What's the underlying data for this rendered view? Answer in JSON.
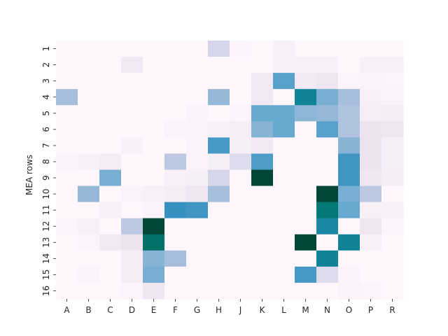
{
  "chart_data": {
    "type": "heatmap",
    "title": "",
    "xlabel": "",
    "ylabel": "MEA rows",
    "colorbar": false,
    "colormap": "PuBuGn",
    "value_range": [
      0,
      1
    ],
    "x_categories": [
      "A",
      "B",
      "C",
      "D",
      "E",
      "F",
      "G",
      "H",
      "J",
      "K",
      "L",
      "M",
      "N",
      "O",
      "P",
      "R"
    ],
    "y_categories": [
      "1",
      "2",
      "3",
      "4",
      "5",
      "6",
      "7",
      "8",
      "9",
      "10",
      "11",
      "12",
      "13",
      "14",
      "15",
      "16"
    ],
    "values": [
      [
        0.0,
        0.0,
        0.0,
        0.0,
        0.0,
        0.0,
        0.0,
        0.2,
        0.02,
        0.0,
        0.05,
        0.0,
        0.0,
        0.0,
        0.0,
        0.0
      ],
      [
        0.0,
        0.0,
        0.0,
        0.1,
        0.0,
        0.0,
        0.0,
        0.0,
        0.0,
        0.0,
        0.05,
        0.05,
        0.05,
        0.0,
        0.05,
        0.05
      ],
      [
        0.0,
        0.0,
        0.0,
        0.0,
        0.0,
        0.0,
        0.0,
        0.0,
        0.0,
        0.1,
        0.55,
        0.1,
        0.12,
        0.02,
        0.03,
        0.02
      ],
      [
        0.3,
        0.0,
        0.0,
        0.0,
        0.0,
        0.0,
        0.0,
        0.35,
        0.0,
        0.1,
        0.0,
        0.75,
        0.45,
        0.3,
        0.05,
        0.03
      ],
      [
        0.0,
        0.0,
        0.0,
        0.0,
        0.0,
        0.0,
        0.03,
        0.0,
        0.02,
        0.5,
        0.5,
        0.38,
        0.35,
        0.28,
        0.07,
        0.08
      ],
      [
        0.0,
        0.0,
        0.0,
        0.0,
        0.0,
        0.03,
        0.03,
        0.05,
        0.07,
        0.4,
        0.5,
        0.0,
        0.55,
        0.28,
        0.15,
        0.12
      ],
      [
        0.0,
        0.0,
        0.0,
        0.04,
        0.0,
        0.0,
        0.03,
        0.6,
        0.06,
        0.1,
        0.0,
        0.0,
        0.0,
        0.4,
        0.15,
        0.06
      ],
      [
        0.03,
        0.05,
        0.08,
        0.0,
        0.0,
        0.25,
        0.03,
        0.06,
        0.18,
        0.58,
        0.0,
        0.0,
        0.0,
        0.62,
        0.15,
        0.06
      ],
      [
        0.0,
        0.0,
        0.45,
        0.0,
        0.0,
        0.05,
        0.06,
        0.2,
        0.0,
        1.0,
        0.0,
        0.0,
        0.0,
        0.62,
        0.12,
        0.08
      ],
      [
        0.0,
        0.35,
        0.0,
        0.03,
        0.05,
        0.08,
        0.12,
        0.3,
        0.0,
        0.0,
        0.0,
        0.0,
        1.0,
        0.45,
        0.25,
        0.0
      ],
      [
        0.0,
        0.0,
        0.05,
        0.0,
        0.03,
        0.65,
        0.62,
        0.0,
        0.0,
        0.0,
        0.0,
        0.0,
        0.82,
        0.5,
        0.05,
        0.05
      ],
      [
        0.02,
        0.05,
        0.0,
        0.25,
        1.0,
        0.0,
        0.0,
        0.0,
        0.0,
        0.0,
        0.0,
        0.0,
        0.72,
        0.0,
        0.12,
        0.02
      ],
      [
        0.0,
        0.02,
        0.1,
        0.15,
        0.85,
        0.0,
        0.0,
        0.0,
        0.0,
        0.0,
        0.0,
        1.0,
        0.0,
        0.75,
        0.05,
        0.0
      ],
      [
        0.0,
        0.0,
        0.0,
        0.08,
        0.4,
        0.3,
        0.0,
        0.0,
        0.0,
        0.0,
        0.0,
        0.0,
        0.75,
        0.0,
        0.0,
        0.0
      ],
      [
        0.0,
        0.03,
        0.0,
        0.08,
        0.45,
        0.0,
        0.0,
        0.0,
        0.0,
        0.0,
        0.0,
        0.6,
        0.18,
        0.03,
        0.0,
        0.0
      ],
      [
        0.0,
        0.0,
        0.0,
        0.02,
        0.12,
        0.0,
        0.0,
        0.0,
        0.0,
        0.0,
        0.0,
        0.0,
        0.0,
        0.03,
        0.02,
        0.0
      ]
    ],
    "grid": false,
    "legend": "none"
  }
}
